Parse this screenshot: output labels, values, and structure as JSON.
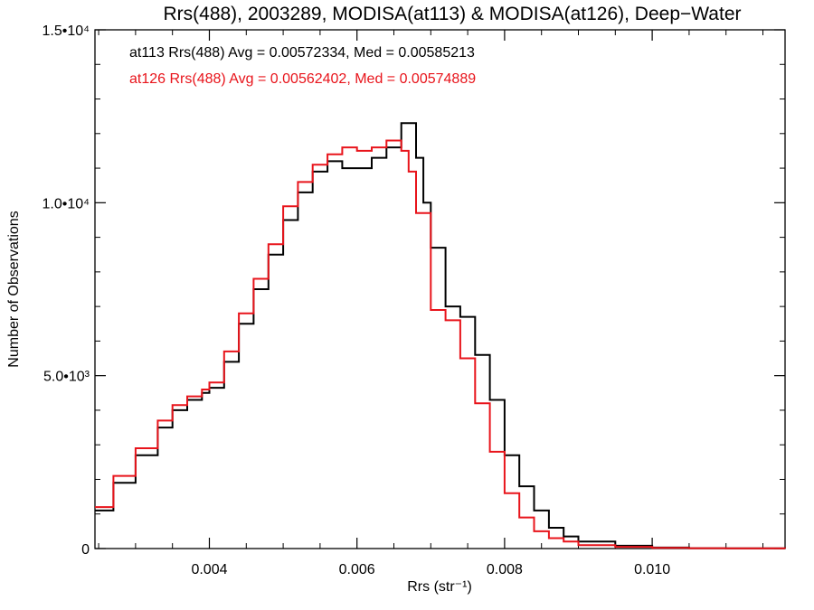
{
  "chart_data": {
    "type": "line",
    "title": "Rrs(488), 2003289, MODISA(at113) & MODISA(at126), Deep−Water",
    "xlabel": "Rrs (str⁻¹)",
    "ylabel": "Number of Observations",
    "xlim": [
      0.00245,
      0.0118
    ],
    "ylim": [
      0,
      15000
    ],
    "x_ticks": [
      {
        "value": 0.004,
        "label": "0.004"
      },
      {
        "value": 0.006,
        "label": "0.006"
      },
      {
        "value": 0.008,
        "label": "0.008"
      },
      {
        "value": 0.01,
        "label": "0.010"
      }
    ],
    "y_ticks": [
      {
        "value": 0,
        "label": "0"
      },
      {
        "value": 5000,
        "label": "5.0•10³"
      },
      {
        "value": 10000,
        "label": "1.0•10⁴"
      },
      {
        "value": 15000,
        "label": "1.5•10⁴"
      }
    ],
    "grid": false,
    "legend_position": "top-left",
    "series": [
      {
        "name": "at113 Rrs(488) Avg = 0.00572334, Med = 0.00585213",
        "color": "#000000",
        "x": [
          0.00245,
          0.0027,
          0.003,
          0.0033,
          0.0035,
          0.0037,
          0.0039,
          0.004,
          0.0042,
          0.0044,
          0.0046,
          0.0048,
          0.005,
          0.0052,
          0.0054,
          0.0056,
          0.0058,
          0.006,
          0.0062,
          0.0064,
          0.0066,
          0.0068,
          0.0069,
          0.007,
          0.0072,
          0.0074,
          0.0076,
          0.0078,
          0.008,
          0.0082,
          0.0084,
          0.0086,
          0.0088,
          0.009,
          0.0095,
          0.01,
          0.0105,
          0.011,
          0.0118
        ],
        "values": [
          1100,
          1900,
          2700,
          3500,
          4000,
          4300,
          4500,
          4650,
          5400,
          6500,
          7500,
          8500,
          9500,
          10300,
          10900,
          11200,
          11000,
          11000,
          11300,
          11600,
          12300,
          11300,
          10000,
          8700,
          7000,
          6700,
          5600,
          4300,
          2700,
          1800,
          1100,
          600,
          350,
          200,
          80,
          30,
          10,
          5,
          0
        ]
      },
      {
        "name": "at126 Rrs(488) Avg = 0.00562402, Med = 0.00574889",
        "color": "#e8141b",
        "x": [
          0.00245,
          0.0027,
          0.003,
          0.0033,
          0.0035,
          0.0037,
          0.0039,
          0.004,
          0.0042,
          0.0044,
          0.0046,
          0.0048,
          0.005,
          0.0052,
          0.0054,
          0.0056,
          0.0058,
          0.006,
          0.0062,
          0.0064,
          0.0066,
          0.0067,
          0.0068,
          0.007,
          0.0072,
          0.0074,
          0.0076,
          0.0078,
          0.008,
          0.0082,
          0.0084,
          0.0086,
          0.0088,
          0.009,
          0.0095,
          0.01,
          0.0105,
          0.011,
          0.0118
        ],
        "values": [
          1200,
          2100,
          2900,
          3700,
          4150,
          4400,
          4600,
          4800,
          5700,
          6800,
          7800,
          8800,
          9900,
          10600,
          11100,
          11400,
          11600,
          11500,
          11600,
          11800,
          11500,
          10900,
          9700,
          6900,
          6600,
          5500,
          4200,
          2800,
          1600,
          900,
          500,
          300,
          200,
          100,
          50,
          20,
          10,
          5,
          0
        ]
      }
    ]
  }
}
